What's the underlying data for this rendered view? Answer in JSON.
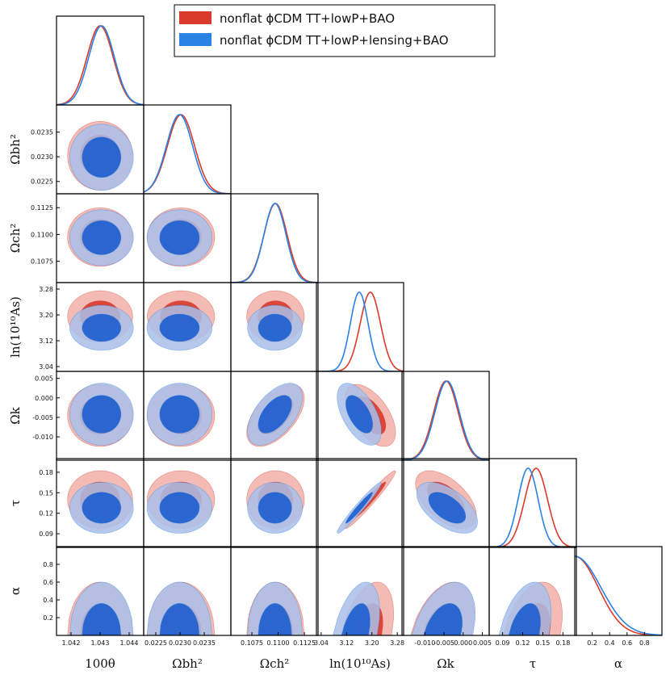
{
  "chart_data": {
    "type": "triangle",
    "legend": {
      "placement": "top-right",
      "entries": [
        {
          "label": "nonflat ϕCDM TT+lowP+BAO",
          "color": "#d93a2b",
          "fill_light": "#f0a39b",
          "fill_dark": "#d93a2b"
        },
        {
          "label": "nonflat ϕCDM TT+lowP+lensing+BAO",
          "color": "#2a82e4",
          "fill_light": "#a9c0ea",
          "fill_dark": "#2462d0"
        }
      ]
    },
    "parameters": [
      {
        "key": "theta",
        "label": "100θ",
        "range": [
          1.0415,
          1.0445
        ],
        "mean": [
          1.043,
          1.04305
        ],
        "sigma": [
          0.00045,
          0.00044
        ],
        "ticks": [
          1.042,
          1.043,
          1.044
        ],
        "tick_labels": [
          "1.042",
          "1.043",
          "1.044"
        ]
      },
      {
        "key": "omb",
        "label": "Ωbh²",
        "range": [
          0.02225,
          0.02405
        ],
        "mean": [
          0.02302,
          0.02299
        ],
        "sigma": [
          0.00028,
          0.00027
        ],
        "ticks": [
          0.0225,
          0.023,
          0.0235
        ],
        "tick_labels": [
          "0.0225",
          "0.0230",
          "0.0235"
        ]
      },
      {
        "key": "omc",
        "label": "Ωch²",
        "range": [
          0.1055,
          0.1138
        ],
        "mean": [
          0.10975,
          0.1097
        ],
        "sigma": [
          0.0011,
          0.00105
        ],
        "ticks": [
          0.1075,
          0.11,
          0.1125
        ],
        "tick_labels": [
          "0.1075",
          "0.1100",
          "0.1125"
        ]
      },
      {
        "key": "logA",
        "label": "ln(10¹⁰As)",
        "range": [
          3.025,
          3.3
        ],
        "mean": [
          3.195,
          3.16
        ],
        "sigma": [
          0.032,
          0.028
        ],
        "ticks": [
          3.04,
          3.12,
          3.2,
          3.28
        ],
        "tick_labels": [
          "3.04",
          "3.12",
          "3.20",
          "3.28"
        ]
      },
      {
        "key": "omk",
        "label": "Ωk",
        "range": [
          -0.016,
          0.0068
        ],
        "mean": [
          -0.0045,
          -0.0042
        ],
        "sigma": [
          0.0032,
          0.0032
        ],
        "ticks": [
          -0.01,
          -0.005,
          0.0,
          0.005
        ],
        "tick_labels": [
          "-0.010",
          "-0.005",
          "0.000",
          "0.005"
        ]
      },
      {
        "key": "tau",
        "label": "τ",
        "range": [
          0.07,
          0.2
        ],
        "mean": [
          0.14,
          0.128
        ],
        "sigma": [
          0.017,
          0.015
        ],
        "ticks": [
          0.09,
          0.12,
          0.15,
          0.18
        ],
        "tick_labels": [
          "0.09",
          "0.12",
          "0.15",
          "0.18"
        ]
      },
      {
        "key": "alpha",
        "label": "α",
        "range": [
          0.0,
          1.0
        ],
        "mean": [
          0.0,
          0.0
        ],
        "sigma": [
          0.27,
          0.3
        ],
        "ticks": [
          0.2,
          0.4,
          0.6,
          0.8
        ],
        "tick_labels": [
          "0.2",
          "0.4",
          "0.6",
          "0.8"
        ]
      }
    ],
    "correlations": {
      "logA_tau": 0.97,
      "logA_omk": -0.55,
      "omc_omk": 0.55,
      "omk_tau": -0.55,
      "logA_alpha": 0.6,
      "omk_alpha": 0.7,
      "tau_alpha": 0.6
    }
  }
}
